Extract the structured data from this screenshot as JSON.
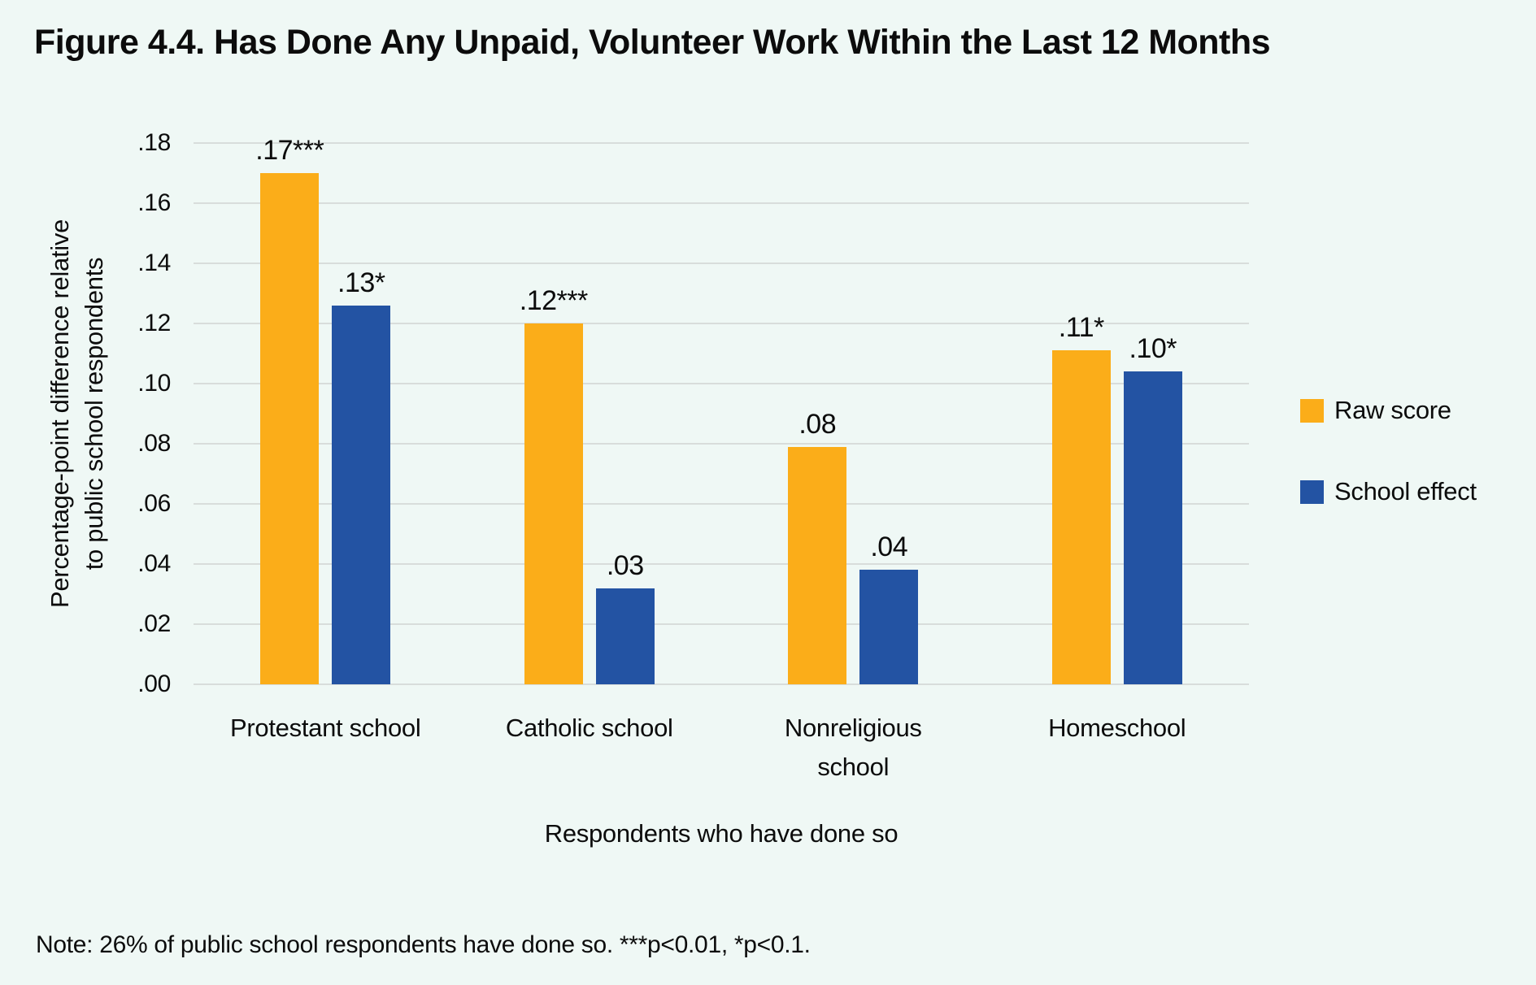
{
  "note": "Note: 26% of public school respondents have done so. ***p<0.01, *p<0.1.",
  "chart_data": {
    "type": "bar",
    "title": "Figure 4.4. Has Done Any Unpaid, Volunteer Work Within the Last 12 Months",
    "categories": [
      "Protestant school",
      "Catholic school",
      "Nonreligious\nschool",
      "Homeschool"
    ],
    "series": [
      {
        "name": "Raw score",
        "color": "#FBAD19",
        "values": [
          0.17,
          0.12,
          0.079,
          0.111
        ],
        "bar_labels": [
          ".17***",
          ".12***",
          ".08",
          ".11*"
        ]
      },
      {
        "name": "School effect",
        "color": "#2353A3",
        "values": [
          0.126,
          0.032,
          0.038,
          0.104
        ],
        "bar_labels": [
          ".13*",
          ".03",
          ".04",
          ".10*"
        ]
      }
    ],
    "xlabel": "Respondents who have done so",
    "ylabel": "Percentage-point difference relative\nto public school respondents",
    "ylim": [
      0,
      0.18
    ],
    "yticks": [
      {
        "value": 0.0,
        "label": ".00"
      },
      {
        "value": 0.02,
        "label": ".02"
      },
      {
        "value": 0.04,
        "label": ".04"
      },
      {
        "value": 0.06,
        "label": ".06"
      },
      {
        "value": 0.08,
        "label": ".08"
      },
      {
        "value": 0.1,
        "label": ".10"
      },
      {
        "value": 0.12,
        "label": ".12"
      },
      {
        "value": 0.14,
        "label": ".14"
      },
      {
        "value": 0.16,
        "label": ".16"
      },
      {
        "value": 0.18,
        "label": ".18"
      }
    ],
    "grid": true,
    "legend_position": "right-middle"
  }
}
